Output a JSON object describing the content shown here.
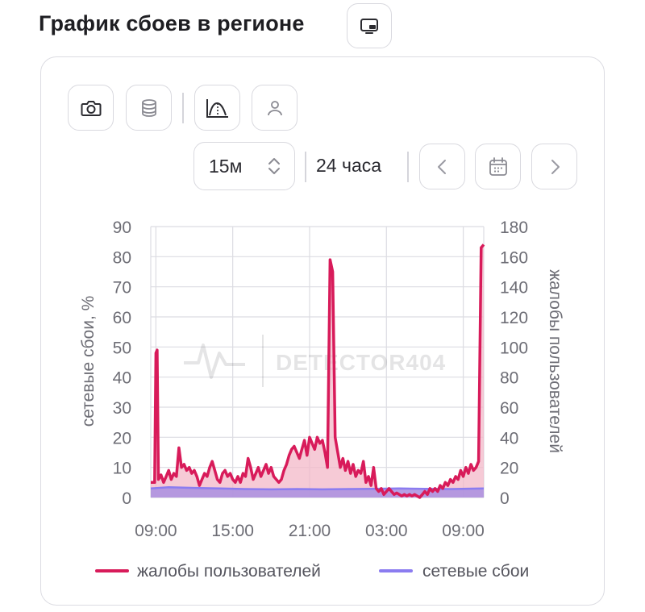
{
  "page": {
    "title": "График сбоев в регионе"
  },
  "toolbar": {
    "period_value": "15м",
    "range_label": "24 часа"
  },
  "icons": {
    "title_button": "monitor-icon",
    "screenshot": "camera-icon",
    "data": "database-icon",
    "smoothing": "curve-icon",
    "user": "user-icon",
    "prev": "chevron-left-icon",
    "calendar": "calendar-icon",
    "next": "chevron-right-icon"
  },
  "watermark": "DETECTOR404",
  "colors": {
    "complaints": "#d81b5a",
    "complaints_fill": "#f3b8c8",
    "outages": "#8b7cf0",
    "outages_fill": "#a98fe0",
    "grid": "#dcdce2",
    "axis_text": "#6d6d75"
  },
  "chart_data": {
    "type": "area",
    "x_ticks": [
      "09:00",
      "15:00",
      "21:00",
      "03:00",
      "09:00"
    ],
    "y_left": {
      "label": "сетевые сбои, %",
      "ticks": [
        0,
        10,
        20,
        30,
        40,
        50,
        60,
        70,
        80,
        90
      ],
      "range": [
        0,
        90
      ]
    },
    "y_right": {
      "label": "жалобы пользователей",
      "ticks": [
        0,
        20,
        40,
        60,
        80,
        100,
        120,
        140,
        160,
        180
      ],
      "range": [
        0,
        180
      ]
    },
    "grid": true,
    "legend": {
      "position": "bottom",
      "entries": [
        "жалобы пользователей",
        "сетевые сбои"
      ]
    },
    "x_range_hours": [
      8.6,
      34.6
    ],
    "series": [
      {
        "name": "жалобы пользователей",
        "axis": "right",
        "points": [
          [
            8.6,
            10
          ],
          [
            8.9,
            10
          ],
          [
            9.0,
            96
          ],
          [
            9.1,
            98
          ],
          [
            9.2,
            12
          ],
          [
            9.4,
            15
          ],
          [
            9.6,
            10
          ],
          [
            9.8,
            14
          ],
          [
            10.0,
            18
          ],
          [
            10.2,
            12
          ],
          [
            10.4,
            16
          ],
          [
            10.6,
            14
          ],
          [
            10.8,
            33
          ],
          [
            11.0,
            20
          ],
          [
            11.2,
            22
          ],
          [
            11.4,
            18
          ],
          [
            11.6,
            20
          ],
          [
            11.8,
            16
          ],
          [
            12.0,
            18
          ],
          [
            12.2,
            14
          ],
          [
            12.4,
            8
          ],
          [
            12.6,
            12
          ],
          [
            12.8,
            16
          ],
          [
            13.0,
            14
          ],
          [
            13.2,
            20
          ],
          [
            13.4,
            24
          ],
          [
            13.6,
            18
          ],
          [
            13.8,
            12
          ],
          [
            14.0,
            10
          ],
          [
            14.2,
            16
          ],
          [
            14.4,
            18
          ],
          [
            14.6,
            14
          ],
          [
            14.8,
            16
          ],
          [
            15.0,
            12
          ],
          [
            15.2,
            10
          ],
          [
            15.4,
            14
          ],
          [
            15.6,
            10
          ],
          [
            15.8,
            16
          ],
          [
            16.0,
            14
          ],
          [
            16.2,
            26
          ],
          [
            16.4,
            20
          ],
          [
            16.6,
            12
          ],
          [
            16.8,
            16
          ],
          [
            17.0,
            20
          ],
          [
            17.2,
            14
          ],
          [
            17.4,
            18
          ],
          [
            17.6,
            22
          ],
          [
            17.8,
            16
          ],
          [
            18.0,
            20
          ],
          [
            18.2,
            14
          ],
          [
            18.4,
            12
          ],
          [
            18.6,
            10
          ],
          [
            18.8,
            12
          ],
          [
            19.0,
            18
          ],
          [
            19.2,
            22
          ],
          [
            19.4,
            28
          ],
          [
            19.6,
            32
          ],
          [
            19.8,
            34
          ],
          [
            20.0,
            30
          ],
          [
            20.2,
            26
          ],
          [
            20.4,
            32
          ],
          [
            20.6,
            38
          ],
          [
            20.8,
            28
          ],
          [
            21.0,
            40
          ],
          [
            21.2,
            36
          ],
          [
            21.4,
            32
          ],
          [
            21.6,
            40
          ],
          [
            21.8,
            36
          ],
          [
            22.0,
            38
          ],
          [
            22.2,
            30
          ],
          [
            22.4,
            20
          ],
          [
            22.6,
            158
          ],
          [
            22.8,
            150
          ],
          [
            23.0,
            40
          ],
          [
            23.2,
            30
          ],
          [
            23.4,
            20
          ],
          [
            23.6,
            26
          ],
          [
            23.8,
            18
          ],
          [
            24.0,
            24
          ],
          [
            24.2,
            16
          ],
          [
            24.4,
            22
          ],
          [
            24.6,
            14
          ],
          [
            24.8,
            18
          ],
          [
            25.0,
            16
          ],
          [
            25.2,
            24
          ],
          [
            25.4,
            10
          ],
          [
            25.6,
            14
          ],
          [
            25.8,
            8
          ],
          [
            26.0,
            20
          ],
          [
            26.2,
            6
          ],
          [
            26.4,
            4
          ],
          [
            26.6,
            6
          ],
          [
            26.8,
            2
          ],
          [
            27.0,
            4
          ],
          [
            27.2,
            6
          ],
          [
            27.4,
            4
          ],
          [
            27.6,
            2
          ],
          [
            27.8,
            3
          ],
          [
            28.0,
            2
          ],
          [
            28.2,
            1
          ],
          [
            28.4,
            2
          ],
          [
            28.6,
            1
          ],
          [
            28.8,
            2
          ],
          [
            29.0,
            1
          ],
          [
            29.2,
            2
          ],
          [
            29.4,
            1
          ],
          [
            29.6,
            0
          ],
          [
            29.8,
            2
          ],
          [
            30.0,
            4
          ],
          [
            30.2,
            2
          ],
          [
            30.4,
            6
          ],
          [
            30.6,
            4
          ],
          [
            30.8,
            6
          ],
          [
            31.0,
            4
          ],
          [
            31.2,
            8
          ],
          [
            31.4,
            6
          ],
          [
            31.6,
            10
          ],
          [
            31.8,
            8
          ],
          [
            32.0,
            12
          ],
          [
            32.2,
            10
          ],
          [
            32.4,
            14
          ],
          [
            32.6,
            12
          ],
          [
            32.8,
            18
          ],
          [
            33.0,
            14
          ],
          [
            33.2,
            20
          ],
          [
            33.4,
            16
          ],
          [
            33.6,
            22
          ],
          [
            33.8,
            18
          ],
          [
            34.0,
            20
          ],
          [
            34.2,
            24
          ],
          [
            34.4,
            166
          ],
          [
            34.6,
            168
          ]
        ]
      },
      {
        "name": "сетевые сбои",
        "axis": "left",
        "points": [
          [
            8.6,
            3
          ],
          [
            10.0,
            3.4
          ],
          [
            12.0,
            3.2
          ],
          [
            14.0,
            3.0
          ],
          [
            16.0,
            2.8
          ],
          [
            18.0,
            2.7
          ],
          [
            20.0,
            2.8
          ],
          [
            22.0,
            2.7
          ],
          [
            24.0,
            2.8
          ],
          [
            26.0,
            2.9
          ],
          [
            28.0,
            3.0
          ],
          [
            30.0,
            2.9
          ],
          [
            32.0,
            2.8
          ],
          [
            34.6,
            3.0
          ]
        ]
      }
    ]
  }
}
